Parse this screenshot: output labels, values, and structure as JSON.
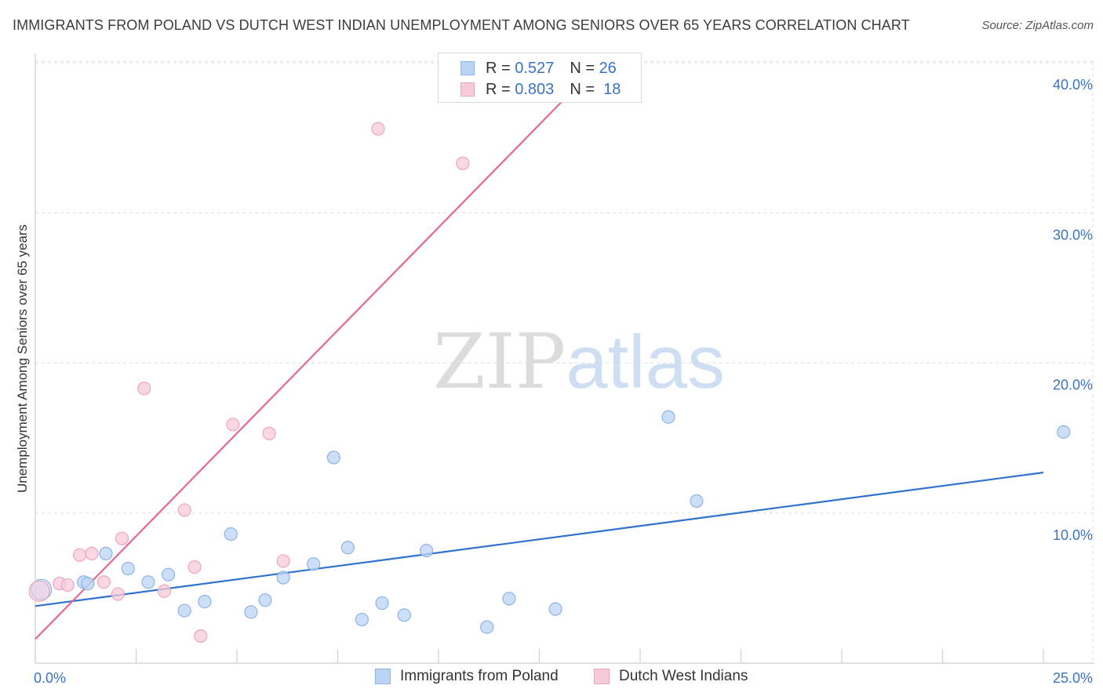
{
  "title": "IMMIGRANTS FROM POLAND VS DUTCH WEST INDIAN UNEMPLOYMENT AMONG SENIORS OVER 65 YEARS CORRELATION CHART",
  "source": "Source: ZipAtlas.com",
  "watermark": {
    "zip": "ZIP",
    "atlas": "atlas"
  },
  "legend": {
    "rows": [
      {
        "r_label": "R = ",
        "r_value": "0.527",
        "n_label": "N = ",
        "n_value": "26",
        "color": "#aecbf0"
      },
      {
        "r_label": "R = ",
        "r_value": "0.803",
        "n_label": "N = ",
        "n_value": "18",
        "color": "#f7bfd0"
      }
    ]
  },
  "bottom_legend": {
    "poland": "Immigrants from Poland",
    "dutch": "Dutch West Indians"
  },
  "colors": {
    "poland_fill": "#bcd4f4",
    "poland_stroke": "#8db3e6",
    "poland_line": "#2f72d0",
    "dutch_fill": "#f8cbd9",
    "dutch_stroke": "#eda5bd",
    "dutch_line": "#e46792",
    "grid": "#dddddd",
    "tick_text": "#3b73c4"
  },
  "chart_data": {
    "type": "scatter",
    "title": "IMMIGRANTS FROM POLAND VS DUTCH WEST INDIAN UNEMPLOYMENT AMONG SENIORS OVER 65 YEARS CORRELATION CHART",
    "xlabel": "",
    "ylabel": "Unemployment Among Seniors over 65 years",
    "xlim": [
      0,
      25
    ],
    "ylim": [
      0,
      40
    ],
    "x_tick_labels": [
      "0.0%",
      "25.0%"
    ],
    "y_ticks": [
      10,
      20,
      30,
      40
    ],
    "y_tick_labels": [
      "10.0%",
      "20.0%",
      "30.0%",
      "40.0%"
    ],
    "grid": true,
    "legend_position": "top-center",
    "series": [
      {
        "name": "Immigrants from Poland",
        "points": [
          [
            0.15,
            4.9
          ],
          [
            1.2,
            5.4
          ],
          [
            1.75,
            7.3
          ],
          [
            2.3,
            6.3
          ],
          [
            2.8,
            5.4
          ],
          [
            3.3,
            5.9
          ],
          [
            3.7,
            3.5
          ],
          [
            4.2,
            4.1
          ],
          [
            4.85,
            8.6
          ],
          [
            5.35,
            3.4
          ],
          [
            5.7,
            4.2
          ],
          [
            6.15,
            5.7
          ],
          [
            6.9,
            6.6
          ],
          [
            7.4,
            13.7
          ],
          [
            7.75,
            7.7
          ],
          [
            8.1,
            2.9
          ],
          [
            8.6,
            4.0
          ],
          [
            9.15,
            3.2
          ],
          [
            9.7,
            7.5
          ],
          [
            11.2,
            2.4
          ],
          [
            11.75,
            4.3
          ],
          [
            12.9,
            3.6
          ],
          [
            15.7,
            16.4
          ],
          [
            16.4,
            10.8
          ],
          [
            25.5,
            15.4
          ],
          [
            1.3,
            5.3
          ]
        ],
        "trend": {
          "x": [
            0,
            25
          ],
          "y": [
            3.8,
            12.7
          ]
        }
      },
      {
        "name": "Dutch West Indians",
        "points": [
          [
            0.1,
            4.8
          ],
          [
            0.6,
            5.3
          ],
          [
            0.8,
            5.2
          ],
          [
            1.1,
            7.2
          ],
          [
            1.4,
            7.3
          ],
          [
            1.7,
            5.4
          ],
          [
            2.05,
            4.6
          ],
          [
            2.15,
            8.3
          ],
          [
            2.7,
            18.3
          ],
          [
            3.2,
            4.8
          ],
          [
            3.7,
            10.2
          ],
          [
            3.95,
            6.4
          ],
          [
            4.1,
            1.8
          ],
          [
            4.9,
            15.9
          ],
          [
            5.8,
            15.3
          ],
          [
            6.15,
            6.8
          ],
          [
            8.5,
            35.6
          ],
          [
            10.6,
            33.3
          ]
        ],
        "trend": {
          "x": [
            0,
            14.0
          ],
          "y": [
            1.6,
            40.0
          ]
        }
      }
    ]
  }
}
